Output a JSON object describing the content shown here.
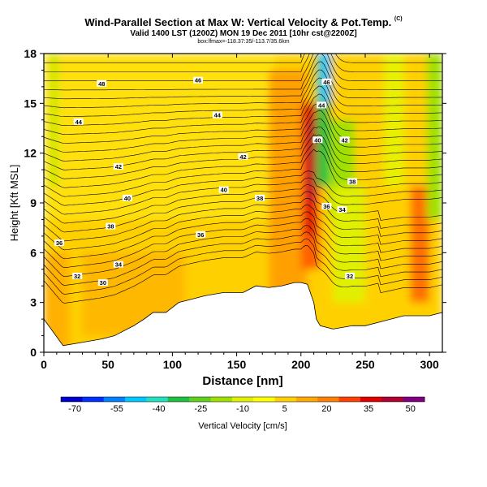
{
  "header": {
    "title": "Wind-Parallel Section at Max W: Vertical Velocity & Pot.Temp.",
    "title_mark": "(C)",
    "valid_line": "Valid 1400 LST (1200Z) MON 19 Dec 2011 [10hr cst@2200Z]",
    "sub_line": "box:lfmax=-118.37:35/-113.7/35.6km"
  },
  "chart_data": {
    "type": "heatmap",
    "xlabel": "Distance [nm]",
    "ylabel": "Height [Kft MSL]",
    "xlim": [
      0,
      310
    ],
    "ylim": [
      0,
      18
    ],
    "x_ticks": [
      0,
      50,
      100,
      150,
      200,
      250,
      300
    ],
    "y_ticks": [
      0,
      3,
      6,
      9,
      12,
      15,
      18
    ],
    "terrain": {
      "x": [
        0,
        15,
        30,
        45,
        50,
        55,
        70,
        78,
        85,
        95,
        105,
        115,
        125,
        140,
        155,
        165,
        175,
        185,
        195,
        200,
        205,
        210,
        212,
        215,
        225,
        240,
        250,
        260,
        270,
        280,
        290,
        300,
        310
      ],
      "height": [
        2.0,
        0.4,
        0.6,
        0.8,
        0.9,
        1.0,
        1.6,
        2.0,
        2.4,
        2.4,
        3.0,
        3.2,
        3.4,
        3.6,
        3.6,
        4.0,
        3.9,
        4.0,
        4.2,
        4.2,
        4.1,
        3.0,
        2.0,
        1.6,
        1.4,
        1.6,
        1.6,
        1.8,
        2.0,
        2.2,
        2.2,
        2.2,
        2.4
      ]
    },
    "pot_temp_contours": [
      {
        "label": "48",
        "label_x": 45,
        "label_y": 16.2
      },
      {
        "label": "46",
        "label_x": 120,
        "label_y": 16.4
      },
      {
        "label": "44",
        "label_x": 27,
        "label_y": 13.9
      },
      {
        "label": "44",
        "label_x": 135,
        "label_y": 14.3
      },
      {
        "label": "42",
        "label_x": 58,
        "label_y": 11.2
      },
      {
        "label": "42",
        "label_x": 155,
        "label_y": 11.8
      },
      {
        "label": "40",
        "label_x": 65,
        "label_y": 9.3
      },
      {
        "label": "40",
        "label_x": 140,
        "label_y": 9.8
      },
      {
        "label": "38",
        "label_x": 52,
        "label_y": 7.6
      },
      {
        "label": "38",
        "label_x": 168,
        "label_y": 9.3
      },
      {
        "label": "36",
        "label_x": 12,
        "label_y": 6.6
      },
      {
        "label": "36",
        "label_x": 122,
        "label_y": 7.1
      },
      {
        "label": "34",
        "label_x": 58,
        "label_y": 5.3
      },
      {
        "label": "32",
        "label_x": 26,
        "label_y": 4.6
      },
      {
        "label": "30",
        "label_x": 46,
        "label_y": 4.2
      },
      {
        "label": "46",
        "label_x": 220,
        "label_y": 16.3
      },
      {
        "label": "44",
        "label_x": 216,
        "label_y": 14.9
      },
      {
        "label": "42",
        "label_x": 234,
        "label_y": 12.8
      },
      {
        "label": "40",
        "label_x": 213,
        "label_y": 12.8
      },
      {
        "label": "38",
        "label_x": 240,
        "label_y": 10.3
      },
      {
        "label": "36",
        "label_x": 220,
        "label_y": 8.8
      },
      {
        "label": "34",
        "label_x": 232,
        "label_y": 8.6
      },
      {
        "label": "32",
        "label_x": 238,
        "label_y": 4.6
      }
    ],
    "colorbar": {
      "label": "Vertical Velocity [cm/s]",
      "tick_labels": [
        "-70",
        "-55",
        "-40",
        "-25",
        "-10",
        "5",
        "20",
        "35",
        "50"
      ],
      "tick_values": [
        -70,
        -55,
        -40,
        -25,
        -10,
        5,
        20,
        35,
        50
      ],
      "range": [
        -75,
        55
      ],
      "colors": [
        "#0000cc",
        "#0030ff",
        "#0080ff",
        "#00c8ff",
        "#20e0c0",
        "#20c040",
        "#60d020",
        "#a0e000",
        "#e0f000",
        "#ffff00",
        "#ffd000",
        "#ffa800",
        "#ff8000",
        "#ff4000",
        "#e00000",
        "#b00030",
        "#800080"
      ]
    }
  }
}
